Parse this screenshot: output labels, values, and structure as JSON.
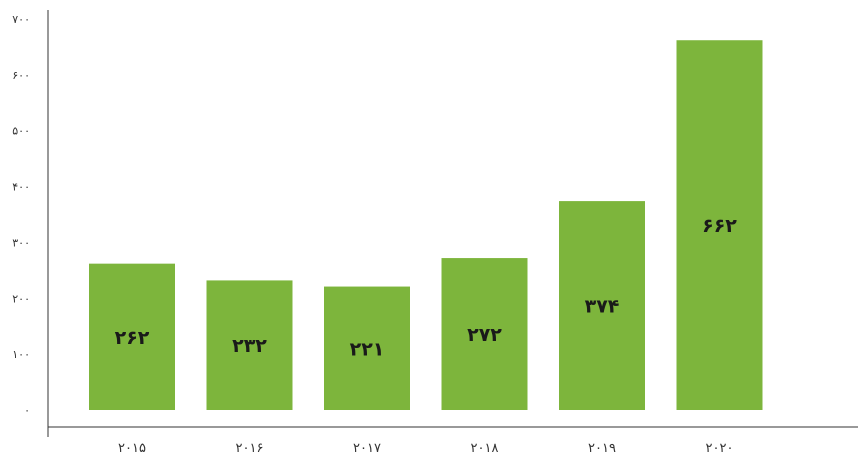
{
  "chart_data": {
    "type": "bar",
    "categories": [
      "۲۰۱۵",
      "۲۰۱۶",
      "۲۰۱۷",
      "۲۰۱۸",
      "۲۰۱۹",
      "۲۰۲۰"
    ],
    "values": [
      262,
      232,
      221,
      272,
      374,
      662
    ],
    "data_labels": [
      "۲۶۲",
      "۲۳۲",
      "۲۲۱",
      "۲۷۲",
      "۳۷۴",
      "۶۶۲"
    ],
    "y_ticks": [
      {
        "value": 0,
        "label": "۰"
      },
      {
        "value": 100,
        "label": "۱۰۰"
      },
      {
        "value": 200,
        "label": "۲۰۰"
      },
      {
        "value": 300,
        "label": "۳۰۰"
      },
      {
        "value": 400,
        "label": "۴۰۰"
      },
      {
        "value": 500,
        "label": "۵۰۰"
      },
      {
        "value": 600,
        "label": "۶۰۰"
      },
      {
        "value": 700,
        "label": "۷۰۰"
      }
    ],
    "ylim": [
      0,
      700
    ],
    "grid": false,
    "bar_color": "#7db53c",
    "axis_color": "#333333"
  }
}
